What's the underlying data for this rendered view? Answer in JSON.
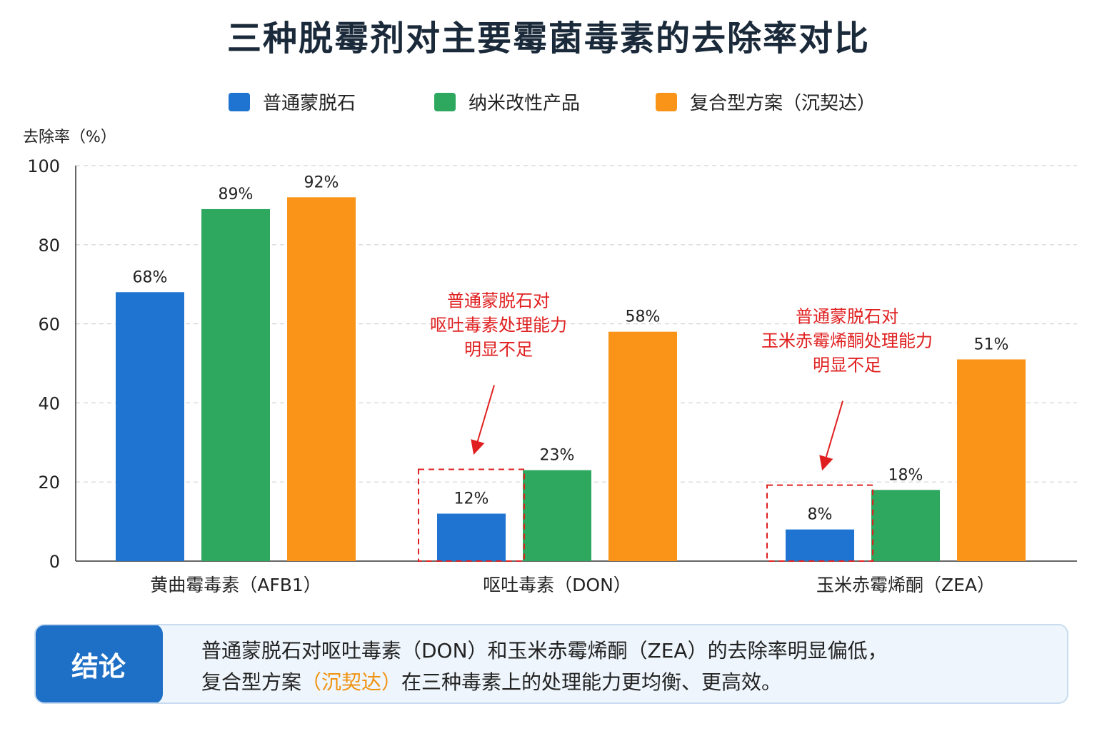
{
  "chart_data": {
    "type": "bar",
    "title": "三种脱霉剂对主要霉菌毒素的去除率对比",
    "ylabel": "去除率（%）",
    "xlabel": "",
    "ylim": [
      0,
      100
    ],
    "yticks": [
      0,
      20,
      40,
      60,
      80,
      100
    ],
    "grid": true,
    "legend_position": "top",
    "categories": [
      "黄曲霉毒素（AFB1）",
      "呕吐毒素（DON）",
      "玉米赤霉烯酮（ZEA）"
    ],
    "series": [
      {
        "name": "普通蒙脱石",
        "color": "#1e74d0",
        "values": [
          68,
          12,
          8
        ],
        "labels": [
          "68%",
          "12%",
          "8%"
        ]
      },
      {
        "name": "纳米改性产品",
        "color": "#2ea85f",
        "values": [
          89,
          23,
          18
        ],
        "labels": [
          "89%",
          "23%",
          "18%"
        ]
      },
      {
        "name": "复合型方案（沉契达）",
        "color": "#fa9418",
        "values": [
          92,
          58,
          51
        ],
        "labels": [
          "92%",
          "58%",
          "51%"
        ]
      }
    ],
    "annotations": [
      {
        "category_index": 1,
        "series_index": 0,
        "lines": [
          "普通蒙脱石对",
          "呕吐毒素处理能力",
          "明显不足"
        ],
        "color": "#e02020"
      },
      {
        "category_index": 2,
        "series_index": 0,
        "lines": [
          "普通蒙脱石对",
          "玉米赤霉烯酮处理能力",
          "明显不足"
        ],
        "color": "#e02020"
      }
    ]
  },
  "conclusion": {
    "badge": "结论",
    "line1": "普通蒙脱石对呕吐毒素（DON）和玉米赤霉烯酮（ZEA）的去除率明显偏低，",
    "line2_prefix": "复合型方案",
    "line2_highlight": "（沉契达）",
    "line2_suffix": "在三种毒素上的处理能力更均衡、更高效。",
    "highlight_color": "#f0920f"
  }
}
